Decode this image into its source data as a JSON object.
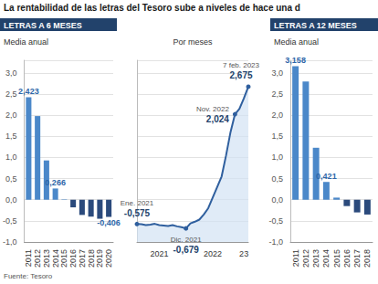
{
  "title": "La rentabilidad de las letras del Tesoro sube a niveles de hace una d",
  "source": "Fuente: Tesoro",
  "chart_data": [
    {
      "type": "bar",
      "header": "LETRAS A 6 MESES",
      "subtitle": "Media anual",
      "categories": [
        "2011",
        "2012",
        "2013",
        "2014",
        "2015",
        "2016",
        "2017",
        "2018",
        "2019",
        "2020"
      ],
      "values": [
        2.423,
        1.98,
        0.93,
        0.266,
        0.01,
        -0.18,
        -0.36,
        -0.4,
        -0.45,
        -0.406
      ],
      "value_labels": [
        "2,423",
        null,
        null,
        "0,266",
        null,
        null,
        null,
        null,
        null,
        "-0,406"
      ],
      "colors": [
        "#4b88c9",
        "#4b88c9",
        "#4b88c9",
        "#4b88c9",
        "#4b88c9",
        "#2b4a7c",
        "#2b4a7c",
        "#2b4a7c",
        "#2b4a7c",
        "#2b4a7c"
      ],
      "data_labels": true,
      "grid": true,
      "ylim": [
        -1,
        3.3
      ],
      "yticks": [
        {
          "value": -1,
          "label": "-1,0"
        },
        {
          "value": -0.5,
          "label": "-0,5"
        },
        {
          "value": 0,
          "label": "0,0"
        },
        {
          "value": 0.5,
          "label": "0,5"
        },
        {
          "value": 1,
          "label": "1,0"
        },
        {
          "value": 1.5,
          "label": "1,5"
        },
        {
          "value": 2,
          "label": "2,0"
        },
        {
          "value": 2.5,
          "label": "2,5"
        },
        {
          "value": 3,
          "label": "3,0"
        }
      ]
    },
    {
      "type": "line",
      "subtitle": "Por meses",
      "categories": [
        null,
        null,
        null,
        null,
        null,
        "2021",
        null,
        null,
        null,
        null,
        null,
        null,
        null,
        null,
        null,
        null,
        null,
        "2022",
        null,
        null,
        null,
        null,
        null,
        null,
        "23",
        null
      ],
      "values": [
        -0.575,
        -0.58,
        -0.6,
        -0.59,
        -0.57,
        -0.6,
        -0.61,
        -0.62,
        -0.6,
        -0.63,
        -0.65,
        -0.679,
        -0.56,
        -0.52,
        -0.47,
        -0.35,
        -0.2,
        0.05,
        0.3,
        0.55,
        1.05,
        1.6,
        2.024,
        2.15,
        2.4,
        2.675
      ],
      "color": "#2f5f9e",
      "grid": true,
      "tick_labels": "x",
      "annotations": [
        {
          "at": 0,
          "label": "Ene. 2021",
          "value_label": "-0,575"
        },
        {
          "at": 11,
          "label": "Dic. 2021",
          "value_label": "-0,679"
        },
        {
          "at": 22,
          "label": "Nov. 2022",
          "value_label": "2,024"
        },
        {
          "at": 25,
          "label": "7 feb. 2023",
          "value_label": "2,675"
        }
      ],
      "ylim": [
        -1,
        3.3
      ],
      "yticks": [
        {
          "value": -1,
          "label": "-1,0"
        },
        {
          "value": -0.5,
          "label": "-0,5"
        },
        {
          "value": 0,
          "label": "0,0"
        },
        {
          "value": 0.5,
          "label": "0,5"
        },
        {
          "value": 1,
          "label": "1,0"
        },
        {
          "value": 1.5,
          "label": "1,5"
        },
        {
          "value": 2,
          "label": "2,0"
        },
        {
          "value": 2.5,
          "label": "2,5"
        },
        {
          "value": 3,
          "label": "3,0"
        }
      ]
    },
    {
      "type": "bar",
      "header": "LETRAS A 12 MESES",
      "subtitle": "Media anual",
      "categories": [
        "2011",
        "2012",
        "2013",
        "2014",
        "2015",
        "2016",
        "2017",
        "2018"
      ],
      "values": [
        3.158,
        2.8,
        1.23,
        0.421,
        0.05,
        -0.15,
        -0.3,
        -0.35
      ],
      "value_labels": [
        "3,158",
        null,
        null,
        "0,421",
        null,
        null,
        null,
        null
      ],
      "colors": [
        "#4b88c9",
        "#4b88c9",
        "#4b88c9",
        "#4b88c9",
        "#4b88c9",
        "#2b4a7c",
        "#2b4a7c",
        "#2b4a7c"
      ],
      "data_labels": true,
      "grid": true,
      "ylim": [
        -1,
        3.3
      ],
      "yticks": [
        {
          "value": -1,
          "label": "-1,0"
        },
        {
          "value": -0.5,
          "label": "-0,5"
        },
        {
          "value": 0,
          "label": "0,0"
        },
        {
          "value": 0.5,
          "label": "0,5"
        },
        {
          "value": 1,
          "label": "1,0"
        },
        {
          "value": 1.5,
          "label": "1,5"
        },
        {
          "value": 2,
          "label": "2,0"
        },
        {
          "value": 2.5,
          "label": "2,5"
        },
        {
          "value": 3,
          "label": "3,0"
        }
      ]
    }
  ]
}
